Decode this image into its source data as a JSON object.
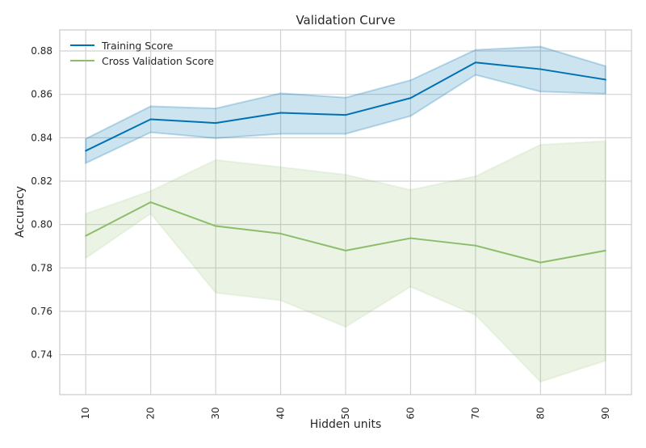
{
  "chart_data": {
    "type": "line",
    "title": "Validation Curve",
    "xlabel": "Hidden units",
    "ylabel": "Accuracy",
    "x": [
      10,
      20,
      30,
      40,
      50,
      60,
      70,
      80,
      90
    ],
    "xlim": [
      6,
      94
    ],
    "ylim": [
      0.7216,
      0.8897
    ],
    "xticks": [
      "10",
      "20",
      "30",
      "40",
      "50",
      "60",
      "70",
      "80",
      "90"
    ],
    "yticks": [
      "0.74",
      "0.76",
      "0.78",
      "0.80",
      "0.82",
      "0.84",
      "0.86",
      "0.88"
    ],
    "grid": true,
    "legend_position": "top-left",
    "series": [
      {
        "name": "Training Score",
        "color": "#0072b2",
        "values": [
          0.834,
          0.8485,
          0.8468,
          0.8515,
          0.8505,
          0.8583,
          0.8747,
          0.8716,
          0.8668
        ],
        "upper": [
          0.8395,
          0.8545,
          0.8535,
          0.8605,
          0.8585,
          0.8665,
          0.8805,
          0.882,
          0.873
        ],
        "lower": [
          0.8283,
          0.8425,
          0.8398,
          0.8418,
          0.8418,
          0.85,
          0.869,
          0.8613,
          0.8603
        ]
      },
      {
        "name": "Cross Validation Score",
        "color": "#8dbd6a",
        "values": [
          0.7948,
          0.8103,
          0.7993,
          0.7958,
          0.788,
          0.7937,
          0.7903,
          0.7825,
          0.788
        ],
        "upper": [
          0.805,
          0.8155,
          0.8298,
          0.8265,
          0.823,
          0.816,
          0.8223,
          0.8368,
          0.8385
        ],
        "lower": [
          0.7845,
          0.805,
          0.7685,
          0.765,
          0.7528,
          0.7713,
          0.7583,
          0.7275,
          0.7372
        ]
      }
    ]
  }
}
